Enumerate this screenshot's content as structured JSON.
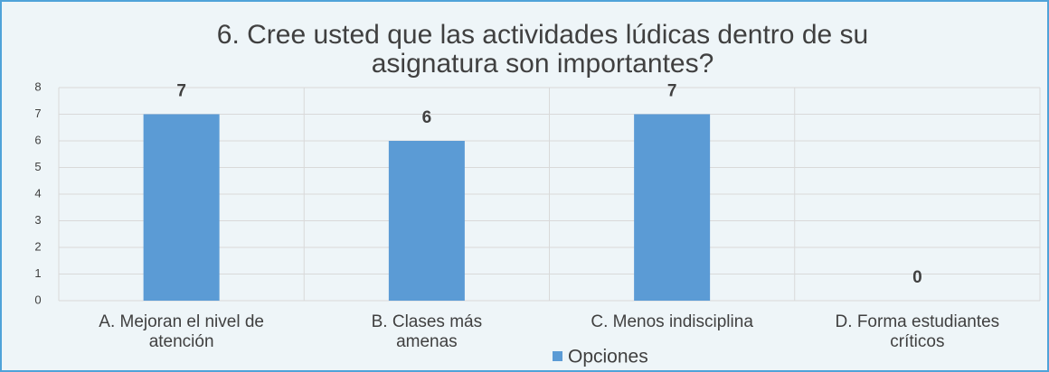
{
  "chart_data": {
    "type": "bar",
    "title": "6. Cree usted que las actividades lúdicas dentro de su\nasignatura son importantes?",
    "categories": [
      "A. Mejoran el nivel de\natención",
      "B. Clases más\namenas",
      "C. Menos indisciplina",
      "D. Forma estudiantes\ncríticos"
    ],
    "series": [
      {
        "name": "Opciones",
        "color": "#5b9bd5",
        "values": [
          7,
          6,
          7,
          0
        ]
      }
    ],
    "ylim": [
      0,
      8
    ],
    "yticks": [
      0,
      1,
      2,
      3,
      4,
      5,
      6,
      7,
      8
    ],
    "grid": true,
    "legend": "bottom"
  }
}
